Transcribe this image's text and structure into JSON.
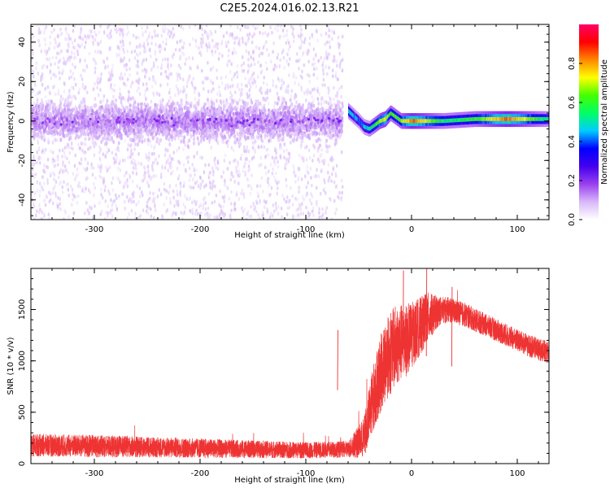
{
  "figure": {
    "title": "C2E5.2024.016.02.13.R21"
  },
  "chart_data": [
    {
      "id": "spectrogram",
      "type": "heatmap",
      "title": "",
      "xlabel": "Height of straight line (km)",
      "ylabel": "Frequency (Hz)",
      "xlim": [
        -360,
        130
      ],
      "ylim": [
        -50,
        49
      ],
      "x_ticks": [
        -300,
        -200,
        -100,
        0,
        100
      ],
      "x_tick_labels": [
        "-300",
        "-200",
        "-100",
        "0",
        "100"
      ],
      "y_ticks": [
        -40,
        -20,
        0,
        20,
        40
      ],
      "y_tick_labels": [
        "-40",
        "-20",
        "0",
        "20",
        "40"
      ],
      "grid": false,
      "colorbar": {
        "label": "Normalized spectral amplitude",
        "range": [
          0,
          1
        ],
        "ticks": [
          0.0,
          0.2,
          0.4,
          0.6,
          0.8
        ],
        "tick_labels": [
          "0.0",
          "0.2",
          "0.4",
          "0.6",
          "0.8"
        ],
        "colormap": [
          "#ffffff",
          "#d8b8f8",
          "#9a40f0",
          "#4400ee",
          "#0000ff",
          "#00ccff",
          "#00ff66",
          "#44ff00",
          "#ffff00",
          "#ff8800",
          "#ff0000",
          "#ff0066"
        ]
      },
      "ridge": {
        "description_points_x": [
          -60,
          -50,
          -45,
          -40,
          -30,
          -25,
          -20,
          -10,
          0,
          30,
          60,
          90,
          130
        ],
        "description_points_y": [
          5,
          0,
          -3,
          -4,
          0,
          1,
          4,
          0,
          0,
          0,
          1,
          1,
          1
        ],
        "peak_amplitude": [
          0.5,
          0.4,
          0.45,
          0.5,
          0.7,
          0.75,
          0.6,
          0.65,
          0.85,
          0.55,
          0.6,
          0.85,
          0.5
        ]
      },
      "noise_region": {
        "x_range": [
          -360,
          -65
        ],
        "core_band_hz": [
          -10,
          10
        ],
        "core_amplitude": 0.12
      }
    },
    {
      "id": "snr",
      "type": "line",
      "title": "",
      "xlabel": "Height of straight line (km)",
      "ylabel": "SNR (10 * v/v)",
      "xlim": [
        -360,
        130
      ],
      "ylim": [
        0,
        1900
      ],
      "x_ticks": [
        -300,
        -200,
        -100,
        0,
        100
      ],
      "x_tick_labels": [
        "-300",
        "-200",
        "-100",
        "0",
        "100"
      ],
      "y_ticks": [
        0,
        500,
        1000,
        1500
      ],
      "y_tick_labels": [
        "0",
        "500",
        "1000",
        "1500"
      ],
      "grid": false,
      "series": [
        {
          "color": "#ee3333",
          "envelope_x": [
            -360,
            -300,
            -250,
            -200,
            -150,
            -100,
            -60,
            -45,
            -35,
            -25,
            -15,
            -5,
            5,
            15,
            25,
            35,
            50,
            70,
            90,
            110,
            130
          ],
          "envelope_mid": [
            180,
            170,
            160,
            150,
            140,
            130,
            140,
            250,
            700,
            1000,
            1150,
            1200,
            1300,
            1420,
            1480,
            1500,
            1450,
            1350,
            1250,
            1150,
            1080
          ],
          "envelope_halfwidth": [
            110,
            110,
            100,
            95,
            85,
            80,
            80,
            200,
            350,
            400,
            400,
            350,
            300,
            250,
            150,
            120,
            120,
            110,
            110,
            110,
            110
          ],
          "spikes": [
            {
              "x": -70,
              "y": 1300
            },
            {
              "x": -8,
              "y": 1880
            },
            {
              "x": 14,
              "y": 1900
            },
            {
              "x": 38,
              "y": 1720
            }
          ]
        }
      ]
    }
  ]
}
